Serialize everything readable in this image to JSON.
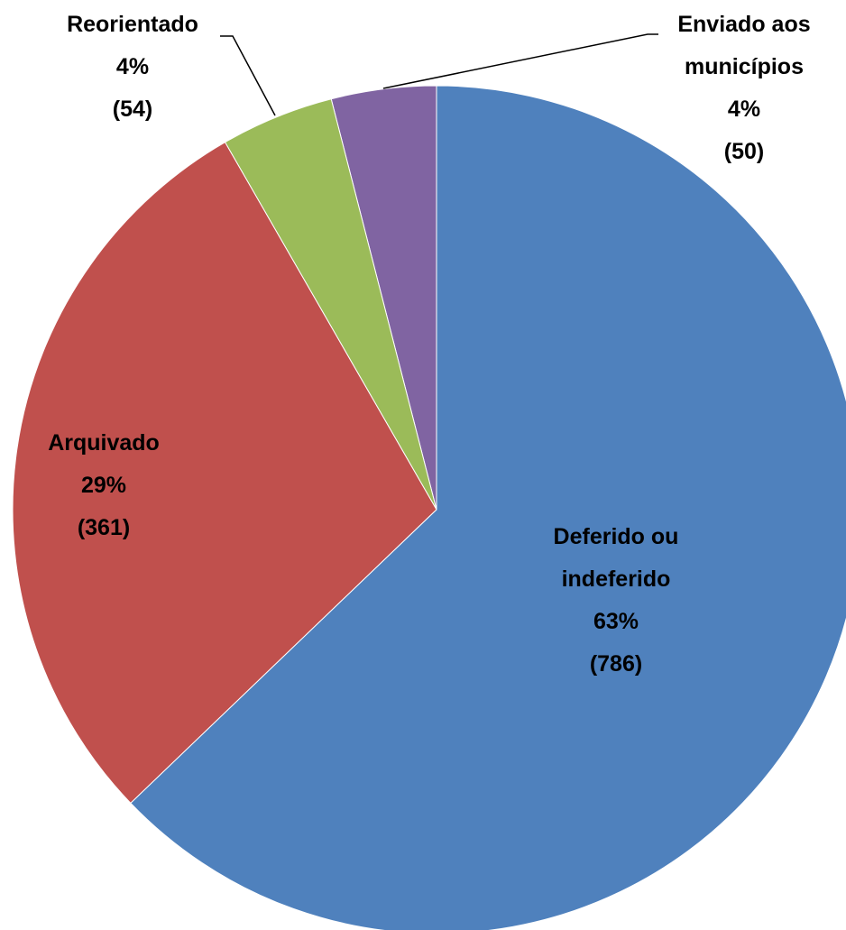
{
  "chart_data": {
    "type": "pie",
    "categories": [
      "Deferido ou indeferido",
      "Arquivado",
      "Reorientado",
      "Enviado aos municípios"
    ],
    "values": [
      786,
      361,
      54,
      50
    ],
    "value_labels": [
      "(786)",
      "(361)",
      "(54)",
      "(50)"
    ],
    "percent_labels": [
      "63%",
      "29%",
      "4%",
      "4%"
    ],
    "colors": [
      "#4f81bd",
      "#c0504d",
      "#9bbb59",
      "#8064a2"
    ]
  }
}
